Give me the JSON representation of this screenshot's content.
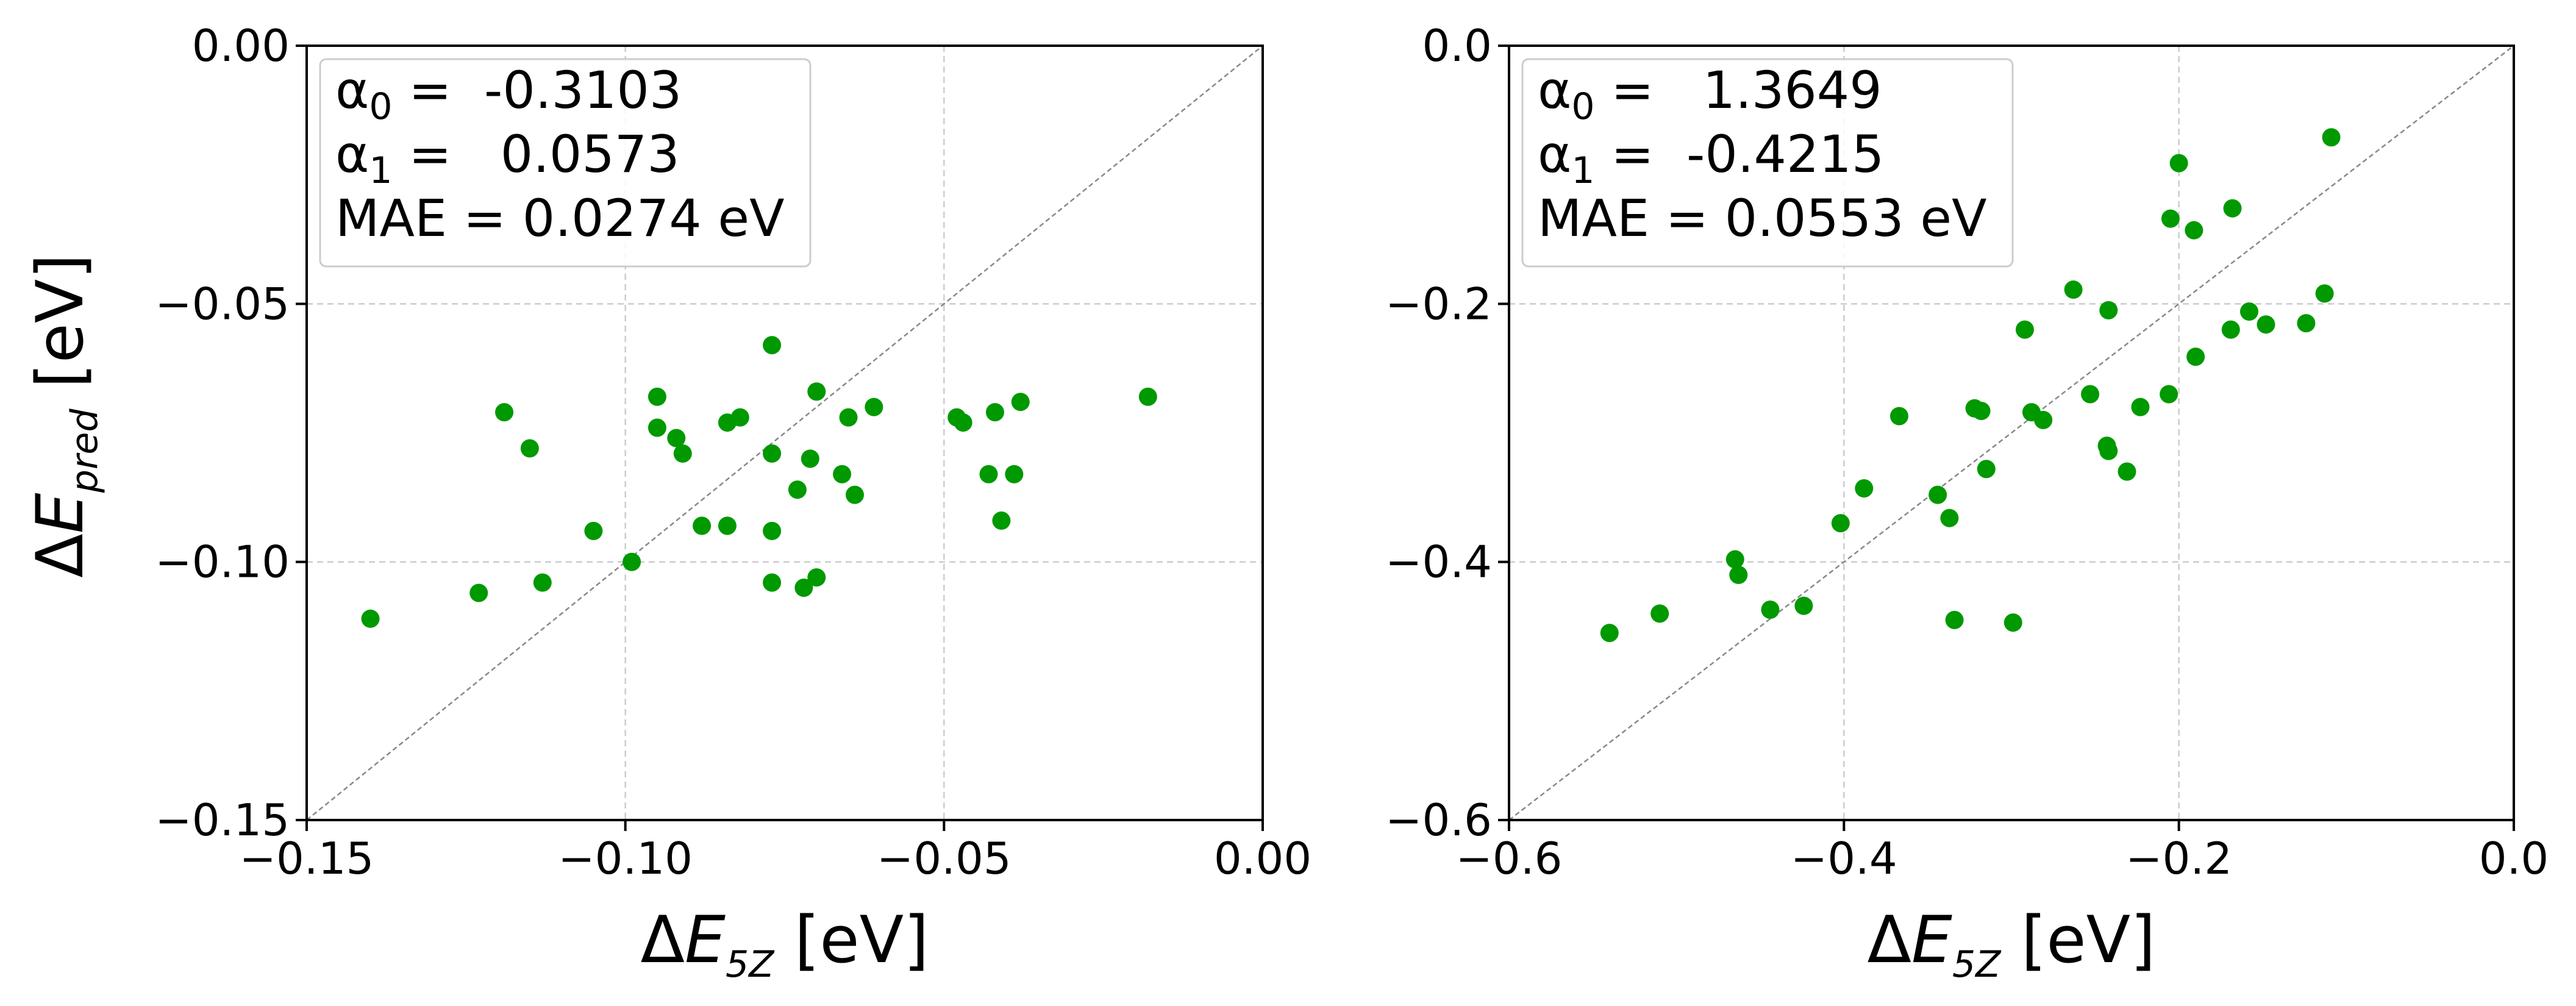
{
  "y_axis_label": {
    "delta": "Δ",
    "var": "E",
    "sub": "pred",
    "unit": " [eV]"
  },
  "colors": {
    "marker": "#009900",
    "grid": "#cccccc",
    "diagonal": "#888888",
    "axis": "#000000",
    "legend_border": "#cccccc"
  },
  "chart_data": [
    {
      "type": "scatter",
      "title": "",
      "xlabel": {
        "delta": "Δ",
        "var": "E",
        "sub": "5Z",
        "unit": " [eV]"
      },
      "xlim": [
        -0.15,
        0.0
      ],
      "ylim": [
        -0.15,
        0.0
      ],
      "xticks": [
        -0.15,
        -0.1,
        -0.05,
        0.0
      ],
      "yticks": [
        -0.15,
        -0.1,
        -0.05,
        0.0
      ],
      "xtick_labels": [
        "−0.15",
        "−0.10",
        "−0.05",
        "0.00"
      ],
      "ytick_labels": [
        "−0.15",
        "−0.10",
        "−0.05",
        "0.00"
      ],
      "grid": true,
      "diagonal": true,
      "legend": {
        "placement": "top-left",
        "lines": [
          {
            "sym": "α",
            "sub": "0",
            "rest": " =  -0.3103"
          },
          {
            "sym": "α",
            "sub": "1",
            "rest": " =   0.0573"
          },
          {
            "sym": "MAE",
            "sub": "",
            "rest": " = 0.0274 eV"
          }
        ]
      },
      "points": [
        {
          "x": -0.14,
          "y": -0.111
        },
        {
          "x": -0.123,
          "y": -0.106
        },
        {
          "x": -0.119,
          "y": -0.071
        },
        {
          "x": -0.115,
          "y": -0.078
        },
        {
          "x": -0.113,
          "y": -0.104
        },
        {
          "x": -0.105,
          "y": -0.094
        },
        {
          "x": -0.099,
          "y": -0.1
        },
        {
          "x": -0.095,
          "y": -0.068
        },
        {
          "x": -0.095,
          "y": -0.074
        },
        {
          "x": -0.092,
          "y": -0.076
        },
        {
          "x": -0.091,
          "y": -0.079
        },
        {
          "x": -0.088,
          "y": -0.093
        },
        {
          "x": -0.084,
          "y": -0.073
        },
        {
          "x": -0.084,
          "y": -0.093
        },
        {
          "x": -0.082,
          "y": -0.072
        },
        {
          "x": -0.077,
          "y": -0.058
        },
        {
          "x": -0.077,
          "y": -0.079
        },
        {
          "x": -0.077,
          "y": -0.094
        },
        {
          "x": -0.077,
          "y": -0.104
        },
        {
          "x": -0.073,
          "y": -0.086
        },
        {
          "x": -0.072,
          "y": -0.105
        },
        {
          "x": -0.071,
          "y": -0.08
        },
        {
          "x": -0.07,
          "y": -0.067
        },
        {
          "x": -0.07,
          "y": -0.103
        },
        {
          "x": -0.066,
          "y": -0.083
        },
        {
          "x": -0.065,
          "y": -0.072
        },
        {
          "x": -0.064,
          "y": -0.087
        },
        {
          "x": -0.061,
          "y": -0.07
        },
        {
          "x": -0.048,
          "y": -0.072
        },
        {
          "x": -0.047,
          "y": -0.073
        },
        {
          "x": -0.043,
          "y": -0.083
        },
        {
          "x": -0.042,
          "y": -0.071
        },
        {
          "x": -0.041,
          "y": -0.092
        },
        {
          "x": -0.039,
          "y": -0.083
        },
        {
          "x": -0.038,
          "y": -0.069
        },
        {
          "x": -0.018,
          "y": -0.068
        }
      ]
    },
    {
      "type": "scatter",
      "title": "",
      "xlabel": {
        "delta": "Δ",
        "var": "E",
        "sub": "5Z",
        "unit": " [eV]"
      },
      "xlim": [
        -0.6,
        0.0
      ],
      "ylim": [
        -0.6,
        0.0
      ],
      "xticks": [
        -0.6,
        -0.4,
        -0.2,
        0.0
      ],
      "yticks": [
        -0.6,
        -0.4,
        -0.2,
        0.0
      ],
      "xtick_labels": [
        "−0.6",
        "−0.4",
        "−0.2",
        "0.0"
      ],
      "ytick_labels": [
        "−0.6",
        "−0.4",
        "−0.2",
        "0.0"
      ],
      "grid": true,
      "diagonal": true,
      "legend": {
        "placement": "top-left",
        "lines": [
          {
            "sym": "α",
            "sub": "0",
            "rest": " =   1.3649"
          },
          {
            "sym": "α",
            "sub": "1",
            "rest": " =  -0.4215"
          },
          {
            "sym": "MAE",
            "sub": "",
            "rest": " = 0.0553 eV"
          }
        ]
      },
      "points": [
        {
          "x": -0.54,
          "y": -0.455
        },
        {
          "x": -0.51,
          "y": -0.44
        },
        {
          "x": -0.465,
          "y": -0.398
        },
        {
          "x": -0.463,
          "y": -0.41
        },
        {
          "x": -0.444,
          "y": -0.437
        },
        {
          "x": -0.424,
          "y": -0.434
        },
        {
          "x": -0.402,
          "y": -0.37
        },
        {
          "x": -0.388,
          "y": -0.343
        },
        {
          "x": -0.367,
          "y": -0.287
        },
        {
          "x": -0.344,
          "y": -0.348
        },
        {
          "x": -0.337,
          "y": -0.366
        },
        {
          "x": -0.334,
          "y": -0.445
        },
        {
          "x": -0.322,
          "y": -0.281
        },
        {
          "x": -0.318,
          "y": -0.283
        },
        {
          "x": -0.315,
          "y": -0.328
        },
        {
          "x": -0.299,
          "y": -0.447
        },
        {
          "x": -0.292,
          "y": -0.22
        },
        {
          "x": -0.288,
          "y": -0.284
        },
        {
          "x": -0.281,
          "y": -0.29
        },
        {
          "x": -0.263,
          "y": -0.189
        },
        {
          "x": -0.253,
          "y": -0.27
        },
        {
          "x": -0.243,
          "y": -0.31
        },
        {
          "x": -0.242,
          "y": -0.205
        },
        {
          "x": -0.242,
          "y": -0.314
        },
        {
          "x": -0.231,
          "y": -0.33
        },
        {
          "x": -0.223,
          "y": -0.28
        },
        {
          "x": -0.206,
          "y": -0.27
        },
        {
          "x": -0.205,
          "y": -0.134
        },
        {
          "x": -0.2,
          "y": -0.091
        },
        {
          "x": -0.191,
          "y": -0.143
        },
        {
          "x": -0.19,
          "y": -0.241
        },
        {
          "x": -0.169,
          "y": -0.22
        },
        {
          "x": -0.168,
          "y": -0.126
        },
        {
          "x": -0.158,
          "y": -0.206
        },
        {
          "x": -0.148,
          "y": -0.216
        },
        {
          "x": -0.124,
          "y": -0.215
        },
        {
          "x": -0.113,
          "y": -0.192
        },
        {
          "x": -0.109,
          "y": -0.071
        }
      ]
    }
  ]
}
